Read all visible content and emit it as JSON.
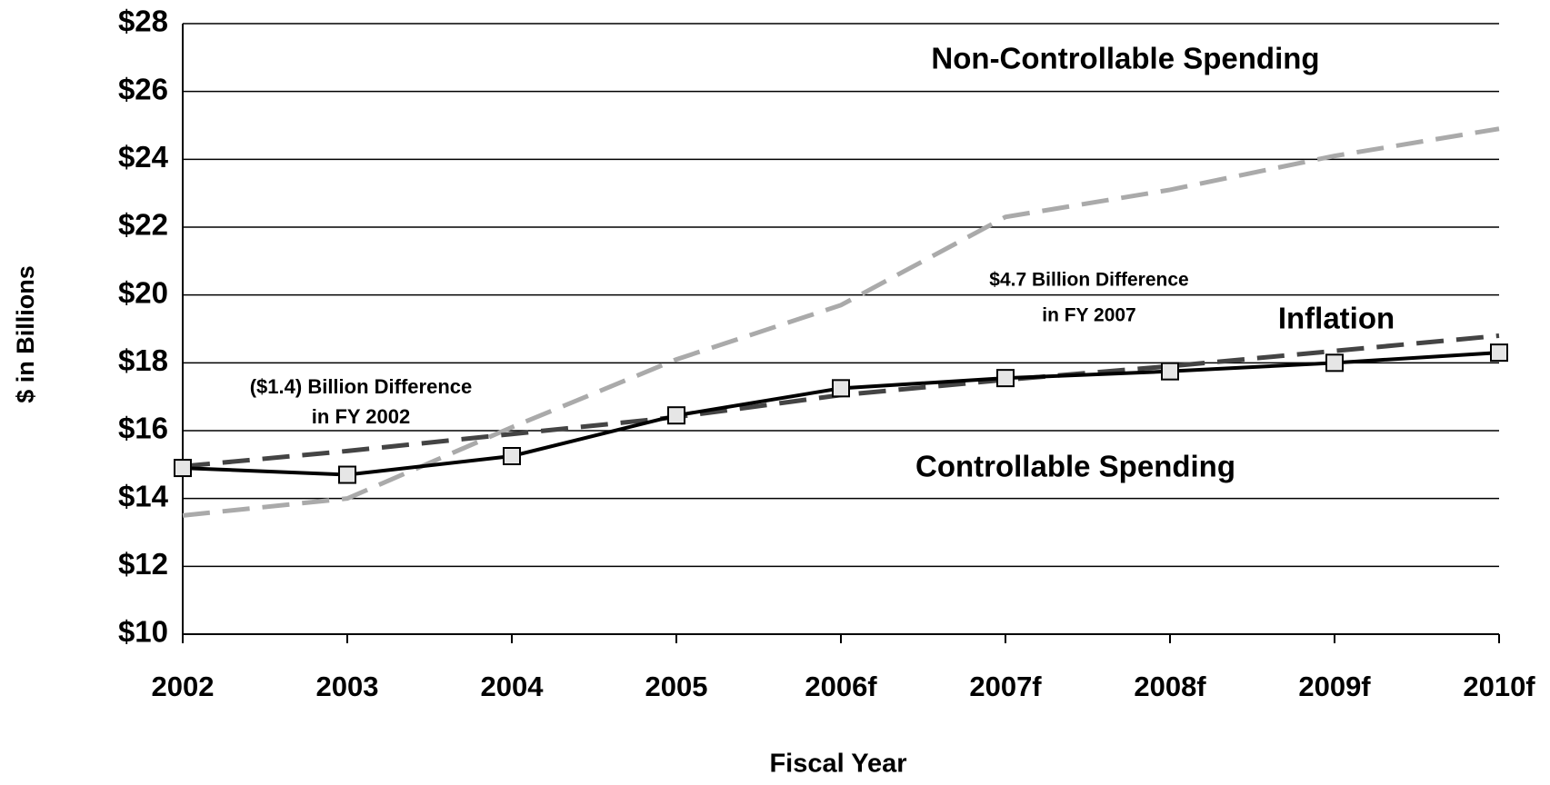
{
  "chart_data": {
    "type": "line",
    "x_label": "Fiscal Year",
    "y_label": "$ in Billions",
    "categories": [
      "2002",
      "2003",
      "2004",
      "2005",
      "2006f",
      "2007f",
      "2008f",
      "2009f",
      "2010f"
    ],
    "series": [
      {
        "color": "#aaaaaa",
        "style": "dashed",
        "values": [
          13.5,
          14.0,
          16.1,
          18.1,
          19.7,
          22.3,
          23.1,
          24.1,
          24.9
        ]
      },
      {
        "color": "#444444",
        "style": "dashed",
        "values": [
          14.95,
          15.4,
          15.9,
          16.4,
          17.05,
          17.5,
          17.9,
          18.35,
          18.8
        ]
      },
      {
        "color": "#000000",
        "style": "solid",
        "markers": true,
        "values": [
          14.9,
          14.7,
          15.25,
          16.45,
          17.25,
          17.55,
          17.75,
          18.0,
          18.3
        ]
      }
    ],
    "ylim": [
      10,
      28
    ],
    "yticks": [
      {
        "value": 10,
        "label": "$10"
      },
      {
        "value": 12,
        "label": "$12"
      },
      {
        "value": 14,
        "label": "$14"
      },
      {
        "value": 16,
        "label": "$16"
      },
      {
        "value": 18,
        "label": "$18"
      },
      {
        "value": 20,
        "label": "$20"
      },
      {
        "value": 22,
        "label": "$22"
      },
      {
        "value": 24,
        "label": "$24"
      },
      {
        "value": 26,
        "label": "$26"
      },
      {
        "value": 28,
        "label": "$28"
      }
    ],
    "grid": true,
    "annotations": [
      {
        "text": "Non-Controllable Spending"
      },
      {
        "text": "$4.7 Billion Difference"
      },
      {
        "text": "in FY 2007"
      },
      {
        "text": "Inflation"
      },
      {
        "text": "($1.4) Billion Difference"
      },
      {
        "text": "in FY 2002"
      },
      {
        "text": "Controllable Spending"
      }
    ]
  }
}
